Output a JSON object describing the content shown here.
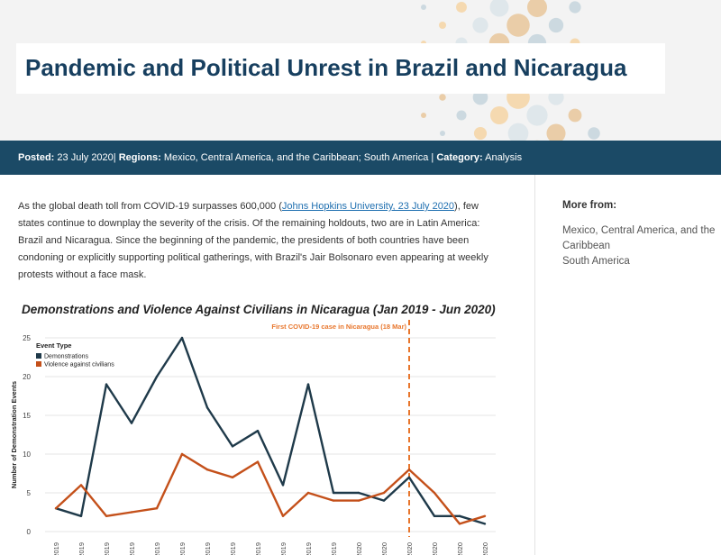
{
  "page": {
    "title": "Pandemic and Political Unrest in Brazil and Nicaragua"
  },
  "meta": {
    "posted_label": "Posted:",
    "posted_value": "23 July 2020",
    "regions_label": "Regions:",
    "regions_value": "Mexico, Central America, and the Caribbean; South America",
    "category_label": "Category:",
    "category_value": "Analysis"
  },
  "intro": {
    "text_before": "As the global death toll from COVID-19 surpasses 600,000 (",
    "link_text": "Johns Hopkins University, 23 July 2020",
    "text_after": "), few states continue to downplay the severity of the crisis. Of the remaining holdouts, two are in Latin America: Brazil and Nicaragua. Since the beginning of the pandemic, the presidents of both countries have been condoning or explicitly supporting political gatherings, with Brazil's Jair Bolsonaro even appearing at weekly protests without a face mask."
  },
  "sidebar": {
    "heading": "More from:",
    "links": [
      "Mexico, Central America, and the Caribbean",
      "South America"
    ]
  },
  "colors": {
    "navy": "#173f5f",
    "meta_bar": "#1b4a66",
    "demonstrations": "#1f3a4a",
    "violence": "#c4501a",
    "covid_line": "#e8762c"
  },
  "chart_data": {
    "type": "line",
    "title": "Demonstrations and Violence Against Civilians in Nicaragua (Jan 2019 - Jun 2020)",
    "ylabel": "Number of Demonstration Events",
    "xlabel": "",
    "ylim": [
      0,
      25
    ],
    "yticks": [
      0,
      5,
      10,
      15,
      20,
      25
    ],
    "grid": true,
    "legend_title": "Event Type",
    "legend_position": "top-left",
    "categories": [
      "2019",
      "2019",
      "2019",
      "2019",
      "2019",
      "2019",
      "2019",
      "2019",
      "2019",
      "2019",
      "2019",
      "2019",
      "2020",
      "2020",
      "2020",
      "2020",
      "2020",
      "2020"
    ],
    "series": [
      {
        "name": "Demonstrations",
        "color": "#1f3a4a",
        "values": [
          3,
          2,
          19,
          14,
          20,
          25,
          16,
          11,
          13,
          6,
          19,
          5,
          5,
          4,
          7,
          2,
          2,
          1
        ]
      },
      {
        "name": "Violence against civilians",
        "color": "#c4501a",
        "values": [
          3,
          6,
          2,
          2.5,
          3,
          10,
          8,
          7,
          9,
          2,
          5,
          4,
          4,
          5,
          8,
          5,
          1,
          2
        ]
      }
    ],
    "annotation": {
      "text": "First COVID-19 case in Nicaragua (18 Mar)",
      "x_index": 14
    }
  }
}
